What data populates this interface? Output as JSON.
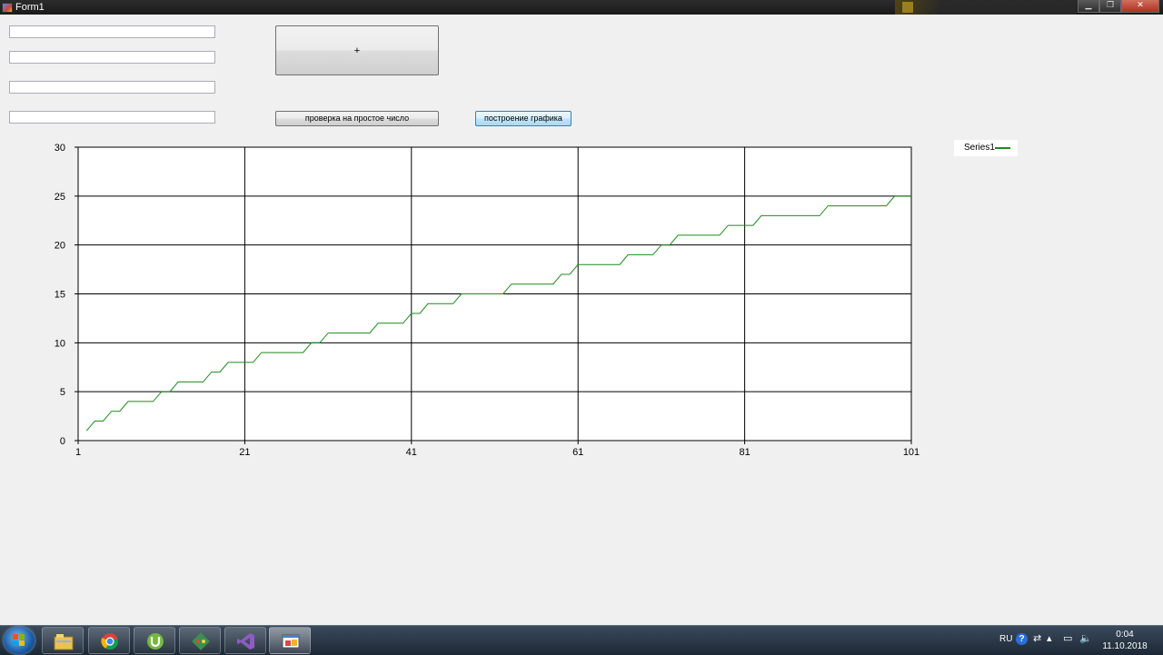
{
  "window": {
    "title": "Form1"
  },
  "inputs": [
    {
      "value": ""
    },
    {
      "value": ""
    },
    {
      "value": ""
    },
    {
      "value": ""
    }
  ],
  "buttons": {
    "big_label": "+",
    "prime_check_label": "проверка на простое число",
    "plot_label": "построение графика"
  },
  "chart_data": {
    "type": "line",
    "x_ticks": [
      "1",
      "21",
      "41",
      "61",
      "81",
      "101"
    ],
    "y_ticks": [
      "0",
      "5",
      "10",
      "15",
      "20",
      "25",
      "30"
    ],
    "xlim": [
      1,
      101
    ],
    "ylim": [
      0,
      30
    ],
    "grid": true,
    "legend_position": "top-right",
    "series": [
      {
        "name": "Series1",
        "color": "#1f8a1f",
        "x": [
          2,
          3,
          4,
          5,
          6,
          7,
          8,
          9,
          10,
          11,
          12,
          13,
          14,
          15,
          16,
          17,
          18,
          19,
          20,
          21,
          22,
          23,
          24,
          25,
          26,
          27,
          28,
          29,
          30,
          31,
          32,
          33,
          34,
          35,
          36,
          37,
          38,
          39,
          40,
          41,
          42,
          43,
          44,
          45,
          46,
          47,
          48,
          49,
          50,
          51,
          52,
          53,
          54,
          55,
          56,
          57,
          58,
          59,
          60,
          61,
          62,
          63,
          64,
          65,
          66,
          67,
          68,
          69,
          70,
          71,
          72,
          73,
          74,
          75,
          76,
          77,
          78,
          79,
          80,
          81,
          82,
          83,
          84,
          85,
          86,
          87,
          88,
          89,
          90,
          91,
          92,
          93,
          94,
          95,
          96,
          97,
          98,
          99,
          100,
          101
        ],
        "y": [
          1,
          2,
          2,
          3,
          3,
          4,
          4,
          4,
          4,
          5,
          5,
          6,
          6,
          6,
          6,
          7,
          7,
          8,
          8,
          8,
          8,
          9,
          9,
          9,
          9,
          9,
          9,
          10,
          10,
          11,
          11,
          11,
          11,
          11,
          11,
          12,
          12,
          12,
          12,
          13,
          13,
          14,
          14,
          14,
          14,
          15,
          15,
          15,
          15,
          15,
          15,
          16,
          16,
          16,
          16,
          16,
          16,
          17,
          17,
          18,
          18,
          18,
          18,
          18,
          18,
          19,
          19,
          19,
          19,
          20,
          20,
          21,
          21,
          21,
          21,
          21,
          21,
          22,
          22,
          22,
          22,
          23,
          23,
          23,
          23,
          23,
          23,
          23,
          23,
          24,
          24,
          24,
          24,
          24,
          24,
          24,
          24,
          25,
          25,
          25
        ]
      }
    ]
  },
  "taskbar": {
    "apps": [
      "explorer-icon",
      "chrome-icon",
      "utorrent-icon",
      "git-icon",
      "visual-studio-icon",
      "form-app-icon"
    ],
    "lang": "RU",
    "time": "0:04",
    "date": "11.10.2018"
  }
}
